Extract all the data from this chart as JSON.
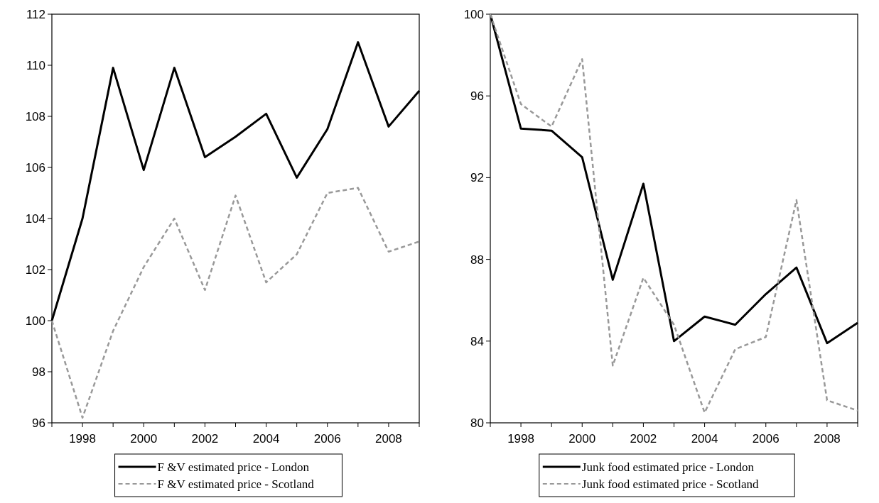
{
  "chart_data": [
    {
      "type": "line",
      "x": [
        1997,
        1998,
        1999,
        2000,
        2001,
        2002,
        2003,
        2004,
        2005,
        2006,
        2007,
        2008,
        2009
      ],
      "xlim": [
        1997,
        2009
      ],
      "xticks": [
        {
          "value": 1997,
          "label": null
        },
        1998,
        {
          "value": 1999,
          "label": null
        },
        2000,
        {
          "value": 2001,
          "label": null
        },
        2002,
        {
          "value": 2003,
          "label": null
        },
        2004,
        {
          "value": 2005,
          "label": null
        },
        2006,
        {
          "value": 2007,
          "label": null
        },
        2008,
        {
          "value": 2009,
          "label": null
        }
      ],
      "ylim": [
        96,
        112
      ],
      "yticks": [
        96,
        98,
        100,
        102,
        104,
        106,
        108,
        110,
        112
      ],
      "legend": "bottom",
      "grid": false,
      "series": [
        {
          "name": "F &V estimated price - London",
          "color": "#000000",
          "line_style": "solid",
          "values": [
            100,
            104.0,
            109.9,
            105.9,
            109.9,
            106.4,
            107.2,
            108.1,
            105.6,
            107.5,
            110.9,
            107.6,
            109.0
          ]
        },
        {
          "name": "F &V estimated price - Scotland",
          "color": "#999999",
          "line_style": "dashed",
          "values": [
            100,
            96.2,
            99.6,
            102.1,
            104.0,
            101.2,
            104.9,
            101.5,
            102.6,
            105.0,
            105.2,
            102.7,
            103.1
          ]
        }
      ]
    },
    {
      "type": "line",
      "x": [
        1997,
        1998,
        1999,
        2000,
        2001,
        2002,
        2003,
        2004,
        2005,
        2006,
        2007,
        2008,
        2009
      ],
      "xlim": [
        1997,
        2009
      ],
      "xticks": [
        {
          "value": 1997,
          "label": null
        },
        1998,
        {
          "value": 1999,
          "label": null
        },
        2000,
        {
          "value": 2001,
          "label": null
        },
        2002,
        {
          "value": 2003,
          "label": null
        },
        2004,
        {
          "value": 2005,
          "label": null
        },
        2006,
        {
          "value": 2007,
          "label": null
        },
        2008,
        {
          "value": 2009,
          "label": null
        }
      ],
      "ylim": [
        80,
        100
      ],
      "yticks": [
        80,
        84,
        88,
        92,
        96,
        100
      ],
      "legend": "bottom",
      "grid": false,
      "series": [
        {
          "name": "Junk food estimated price - London",
          "color": "#000000",
          "line_style": "solid",
          "values": [
            100,
            94.4,
            94.3,
            93.0,
            87.0,
            91.7,
            84.0,
            85.2,
            84.8,
            86.3,
            87.6,
            83.9,
            84.9
          ]
        },
        {
          "name": "Junk food estimated price - Scotland",
          "color": "#999999",
          "line_style": "dashed",
          "values": [
            100,
            95.6,
            94.5,
            97.8,
            82.8,
            87.1,
            84.8,
            80.5,
            83.6,
            84.2,
            90.9,
            81.1,
            80.6
          ]
        }
      ]
    }
  ]
}
